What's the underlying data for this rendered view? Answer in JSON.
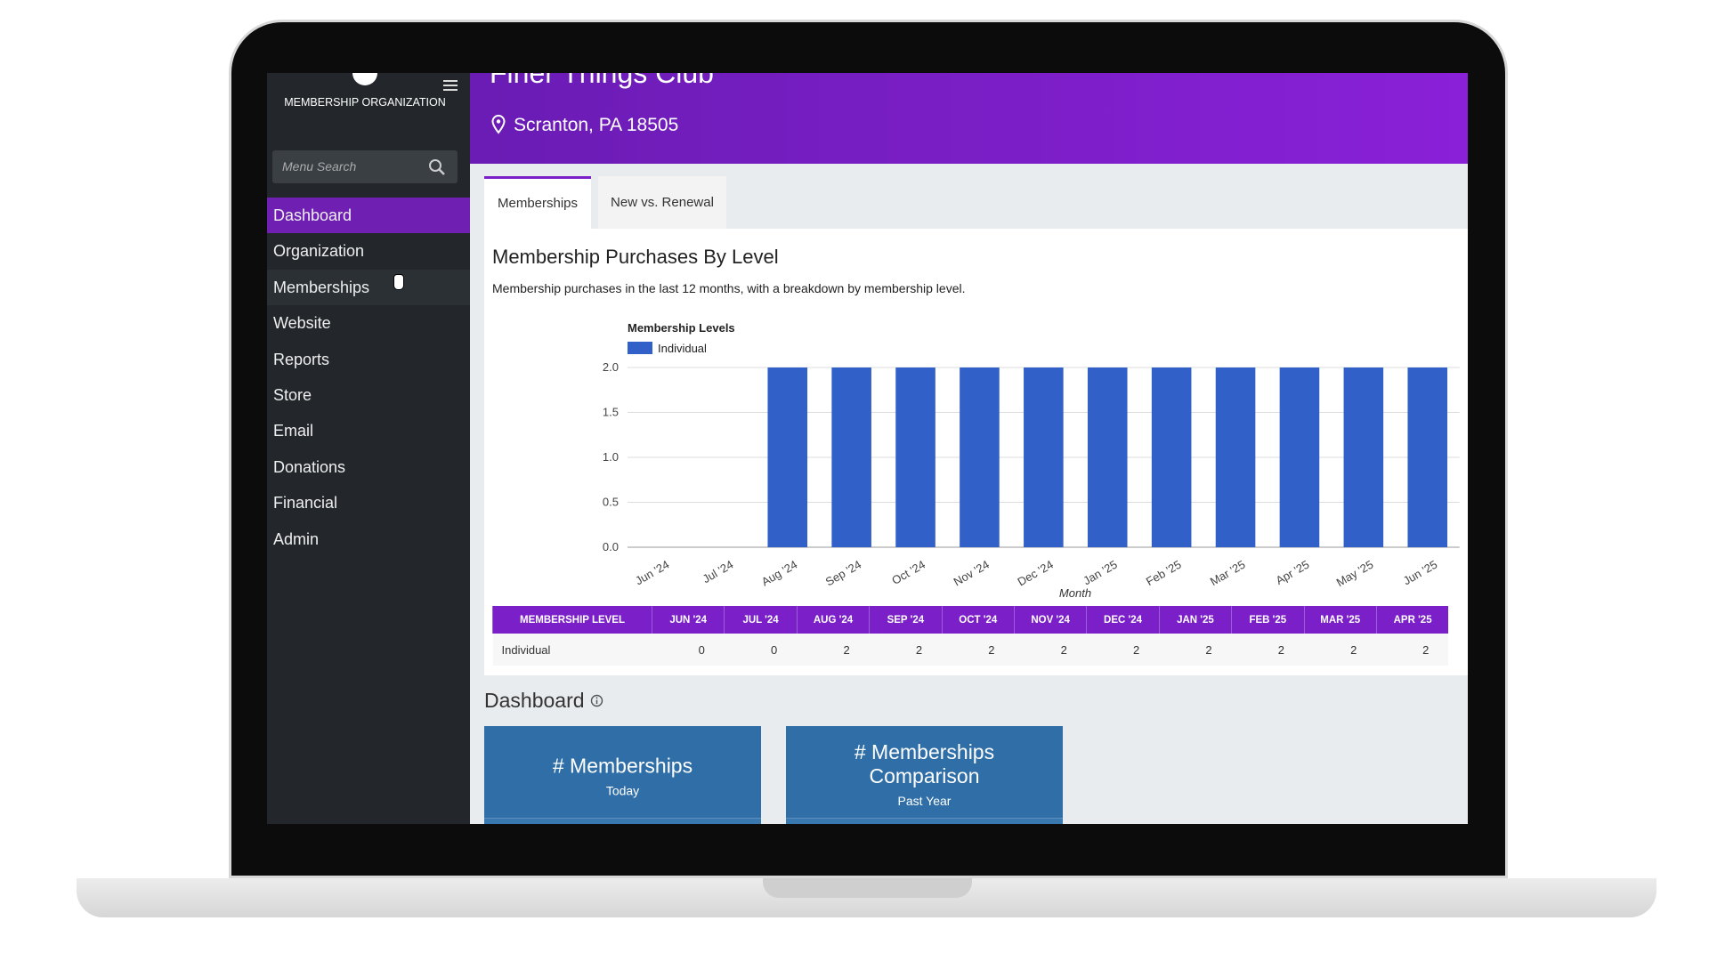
{
  "sidebar": {
    "org": "MEMBERSHIP ORGANIZATION",
    "search_placeholder": "Menu Search",
    "menu": [
      "Dashboard",
      "Organization",
      "Memberships",
      "Website",
      "Reports",
      "Store",
      "Email",
      "Donations",
      "Financial",
      "Admin"
    ]
  },
  "header": {
    "title": "Finer Things Club",
    "location": "Scranton, PA 18505"
  },
  "tabs": [
    "Memberships",
    "New vs. Renewal"
  ],
  "panel": {
    "title": "Membership Purchases By Level",
    "description": "Membership purchases in the last 12 months, with a breakdown by membership level."
  },
  "chart_data": {
    "type": "bar",
    "legend_title": "Membership Levels",
    "x_label": "Month",
    "categories": [
      "Jun '24",
      "Jul '24",
      "Aug '24",
      "Sep '24",
      "Oct '24",
      "Nov '24",
      "Dec '24",
      "Jan '25",
      "Feb '25",
      "Mar '25",
      "Apr '25",
      "May '25",
      "Jun '25"
    ],
    "series": [
      {
        "name": "Individual",
        "color": "#3160c9",
        "values": [
          0,
          0,
          2,
          2,
          2,
          2,
          2,
          2,
          2,
          2,
          2,
          2,
          2
        ]
      }
    ],
    "ylim": [
      0,
      2
    ],
    "yticks": [
      {
        "value": 0,
        "label": "0.0"
      },
      0.5,
      {
        "value": 1,
        "label": "1.0"
      },
      1.5,
      {
        "value": 2,
        "label": "2.0"
      }
    ],
    "grid": true
  },
  "table": {
    "header": [
      "MEMBERSHIP LEVEL",
      "JUN '24",
      "JUL '24",
      "AUG '24",
      "SEP '24",
      "OCT '24",
      "NOV '24",
      "DEC '24",
      "JAN '25",
      "FEB '25",
      "MAR '25",
      "APR '25"
    ],
    "rows": [
      [
        "Individual",
        "0",
        "0",
        "2",
        "2",
        "2",
        "2",
        "2",
        "2",
        "2",
        "2",
        "2"
      ]
    ]
  },
  "dashboard": {
    "title": "Dashboard",
    "cards": [
      {
        "title": "# Memberships",
        "subtitle": "Today"
      },
      {
        "title": "# Memberships Comparison",
        "subtitle": "Past Year"
      }
    ]
  }
}
